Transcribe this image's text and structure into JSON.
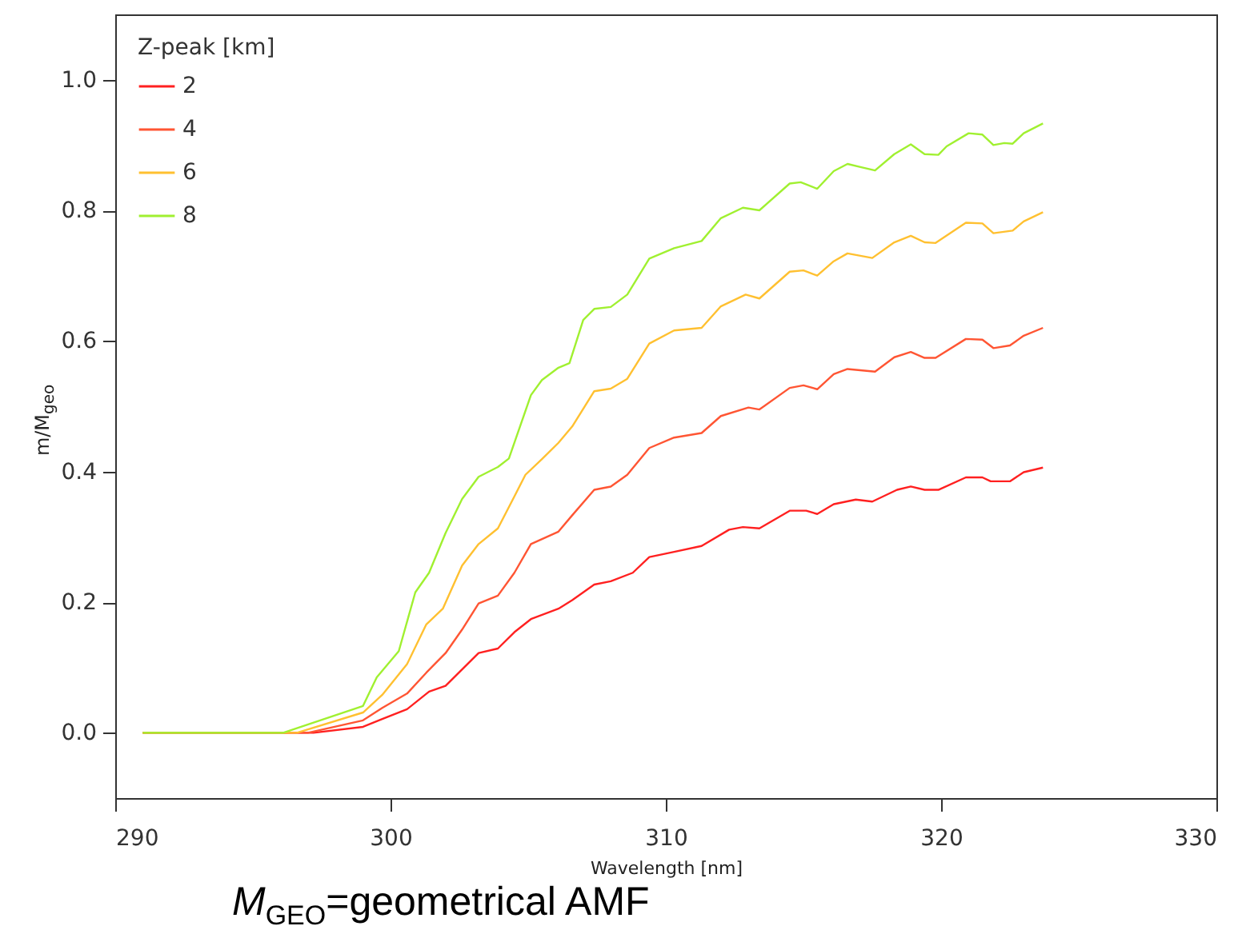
{
  "chart_data": {
    "type": "line",
    "xlabel": "Wavelength [nm]",
    "ylabel": "m/M$_{geo}$",
    "legend_title": "Z-peak [km]",
    "annotations": [
      "M$_{GEO}$=geometrical AMF"
    ],
    "xlim": [
      290,
      330
    ],
    "ylim": [
      -0.1,
      1.1
    ],
    "xticks": [
      290,
      300,
      310,
      320,
      330
    ],
    "yticks": [
      {
        "value": 0,
        "label": "0.0"
      },
      0.2,
      0.4,
      0.6,
      0.8,
      {
        "value": 1,
        "label": "1.0"
      }
    ],
    "grid": false,
    "legend": "top left",
    "line_style": "solid",
    "marker": "none",
    "series": [
      {
        "name": "2",
        "color": "#ff2020",
        "x": [
          291,
          297.2,
          299.0,
          299.7,
          300.6,
          301.4,
          302.0,
          302.6,
          303.2,
          303.9,
          304.5,
          305.1,
          306.1,
          306.6,
          307.4,
          308.0,
          308.8,
          309.4,
          310.3,
          311.3,
          312.3,
          312.8,
          313.4,
          314.5,
          315.1,
          315.5,
          316.1,
          316.9,
          317.5,
          318.4,
          318.9,
          319.4,
          319.9,
          320.9,
          321.5,
          321.8,
          322.5,
          323.0,
          323.7
        ],
        "values": [
          0,
          0,
          0.009,
          0.021,
          0.036,
          0.063,
          0.072,
          0.097,
          0.122,
          0.129,
          0.154,
          0.174,
          0.19,
          0.203,
          0.227,
          0.232,
          0.245,
          0.269,
          0.277,
          0.286,
          0.311,
          0.315,
          0.313,
          0.34,
          0.34,
          0.335,
          0.35,
          0.357,
          0.354,
          0.372,
          0.377,
          0.372,
          0.372,
          0.391,
          0.391,
          0.385,
          0.385,
          0.399,
          0.406
        ]
      },
      {
        "name": "4",
        "color": "#ff5533",
        "x": [
          291,
          297.0,
          299.0,
          299.7,
          300.6,
          301.3,
          302.0,
          302.6,
          303.2,
          303.9,
          304.5,
          305.1,
          306.1,
          306.6,
          307.4,
          308.0,
          308.6,
          309.4,
          310.3,
          311.3,
          312.0,
          313.0,
          313.4,
          314.5,
          315.0,
          315.5,
          316.1,
          316.6,
          317.6,
          318.3,
          318.9,
          319.4,
          319.8,
          320.9,
          321.5,
          321.9,
          322.5,
          323.0,
          323.7
        ],
        "values": [
          0,
          0,
          0.019,
          0.038,
          0.06,
          0.092,
          0.122,
          0.158,
          0.198,
          0.21,
          0.245,
          0.289,
          0.308,
          0.333,
          0.372,
          0.377,
          0.395,
          0.436,
          0.452,
          0.459,
          0.485,
          0.498,
          0.495,
          0.528,
          0.532,
          0.526,
          0.549,
          0.557,
          0.553,
          0.575,
          0.583,
          0.574,
          0.574,
          0.603,
          0.602,
          0.589,
          0.593,
          0.608,
          0.62
        ]
      },
      {
        "name": "6",
        "color": "#ffc030",
        "x": [
          291,
          296.6,
          299.0,
          299.7,
          300.6,
          301.3,
          301.9,
          302.6,
          303.2,
          303.9,
          304.5,
          304.9,
          305.5,
          306.1,
          306.6,
          307.4,
          308.0,
          308.6,
          309.4,
          310.3,
          311.3,
          312.0,
          312.9,
          313.4,
          314.5,
          315.0,
          315.5,
          316.1,
          316.6,
          317.5,
          318.3,
          318.9,
          319.4,
          319.8,
          320.9,
          321.5,
          321.9,
          322.6,
          323.0,
          323.7
        ],
        "values": [
          0,
          0,
          0.031,
          0.058,
          0.105,
          0.166,
          0.19,
          0.256,
          0.289,
          0.313,
          0.362,
          0.395,
          0.419,
          0.444,
          0.469,
          0.523,
          0.527,
          0.542,
          0.596,
          0.616,
          0.62,
          0.653,
          0.671,
          0.665,
          0.706,
          0.708,
          0.7,
          0.722,
          0.734,
          0.727,
          0.751,
          0.761,
          0.751,
          0.75,
          0.781,
          0.78,
          0.765,
          0.769,
          0.783,
          0.797
        ]
      },
      {
        "name": "8",
        "color": "#a0f030",
        "x": [
          291,
          296.1,
          299.0,
          299.5,
          300.3,
          300.9,
          301.4,
          302.0,
          302.6,
          303.2,
          303.9,
          304.3,
          305.1,
          305.5,
          306.1,
          306.5,
          307.0,
          307.4,
          308.0,
          308.6,
          309.4,
          310.3,
          311.3,
          312.0,
          312.8,
          313.4,
          314.5,
          314.9,
          315.5,
          316.1,
          316.6,
          317.1,
          317.6,
          318.3,
          318.9,
          319.4,
          319.9,
          320.2,
          321.0,
          321.5,
          321.9,
          322.3,
          322.6,
          323.0,
          323.7
        ],
        "values": [
          0,
          0,
          0.041,
          0.085,
          0.125,
          0.215,
          0.245,
          0.306,
          0.358,
          0.392,
          0.407,
          0.42,
          0.517,
          0.54,
          0.559,
          0.566,
          0.632,
          0.649,
          0.652,
          0.671,
          0.726,
          0.742,
          0.753,
          0.788,
          0.804,
          0.8,
          0.841,
          0.843,
          0.833,
          0.86,
          0.871,
          0.866,
          0.861,
          0.886,
          0.901,
          0.886,
          0.885,
          0.898,
          0.918,
          0.916,
          0.9,
          0.903,
          0.902,
          0.918,
          0.933
        ]
      }
    ]
  }
}
